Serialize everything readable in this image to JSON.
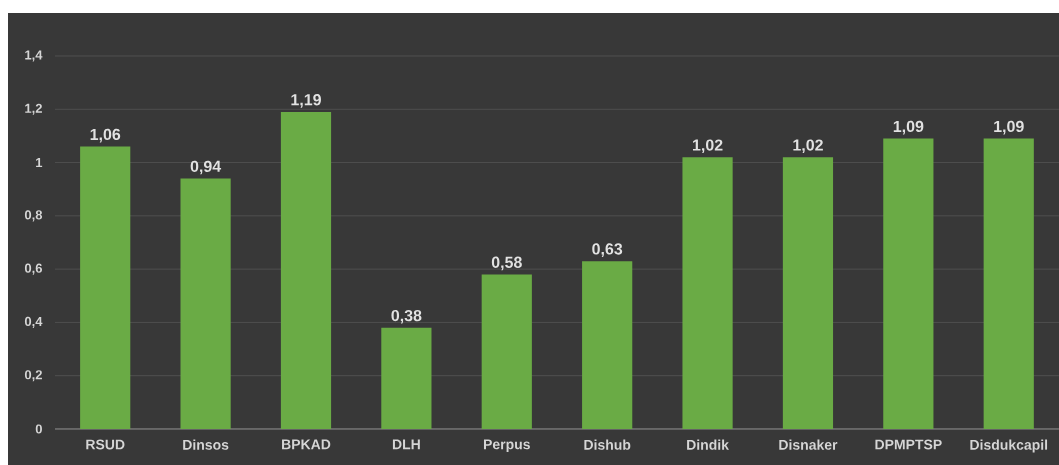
{
  "chart_data": {
    "type": "bar",
    "categories": [
      "RSUD",
      "Dinsos",
      "BPKAD",
      "DLH",
      "Perpus",
      "Dishub",
      "Dindik",
      "Disnaker",
      "DPMPTSP",
      "Disdukcapil"
    ],
    "values": [
      1.06,
      0.94,
      1.19,
      0.38,
      0.58,
      0.63,
      1.02,
      1.02,
      1.09,
      1.09
    ],
    "value_labels": [
      "1,06",
      "0,94",
      "1,19",
      "0,38",
      "0,58",
      "0,63",
      "1,02",
      "1,02",
      "1,09",
      "1,09"
    ],
    "color": "#6aab45",
    "ylim": [
      0,
      1.4
    ],
    "yticks": [
      0,
      {
        "value": 0.2,
        "label": "0,2"
      },
      {
        "value": 0.4,
        "label": "0,4"
      },
      {
        "value": 0.6,
        "label": "0,6"
      },
      {
        "value": 0.8,
        "label": "0,8"
      },
      1,
      {
        "value": 1.2,
        "label": "1,2"
      },
      {
        "value": 1.4,
        "label": "1,4"
      }
    ],
    "grid": "y"
  }
}
